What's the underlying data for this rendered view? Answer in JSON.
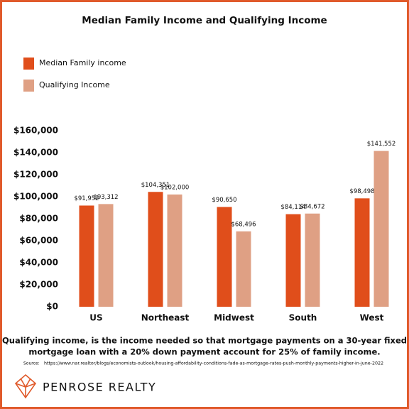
{
  "chart_data": {
    "type": "bar",
    "title": "Median Family Income and Qualifying Income",
    "categories": [
      "US",
      "Northeast",
      "Midwest",
      "South",
      "West"
    ],
    "series": [
      {
        "name": "Median Family income",
        "color": "#e04e1b",
        "values": [
          91952,
          104351,
          90650,
          84114,
          98498
        ],
        "value_labels": [
          "$91,952",
          "$104,351",
          "$90,650",
          "$84,114",
          "$98,498"
        ]
      },
      {
        "name": "Qualifying Income",
        "color": "#dfa084",
        "values": [
          93312,
          102000,
          68496,
          84672,
          141552
        ],
        "value_labels": [
          "$93,312",
          "$102,000",
          "$68,496",
          "$84,672",
          "$141,552"
        ]
      }
    ],
    "ylim": [
      0,
      160000
    ],
    "yticks": [
      {
        "value": 0,
        "label": "$0"
      },
      {
        "value": 20000,
        "label": "$20,000"
      },
      {
        "value": 40000,
        "label": "$40,000"
      },
      {
        "value": 60000,
        "label": "$60,000"
      },
      {
        "value": 80000,
        "label": "$80,000"
      },
      {
        "value": 100000,
        "label": "$100,000"
      },
      {
        "value": 120000,
        "label": "$120,000"
      },
      {
        "value": 140000,
        "label": "$140,000"
      },
      {
        "value": 160000,
        "label": "$160,000"
      }
    ],
    "grid": false,
    "note": [
      "Qualifying income, is the income needed so that mortgage payments on a 30-year fixed",
      "mortgage loan with a 20% down payment account for 25% of family income."
    ],
    "source_label": "Source:",
    "source": "https://www.nar.realtor/blogs/economists-outlook/housing-affordability-conditions-fade-as-mortgage-rates-push-monthly-payments-higher-in-june-2022",
    "brand": "PENROSE REALTY"
  }
}
